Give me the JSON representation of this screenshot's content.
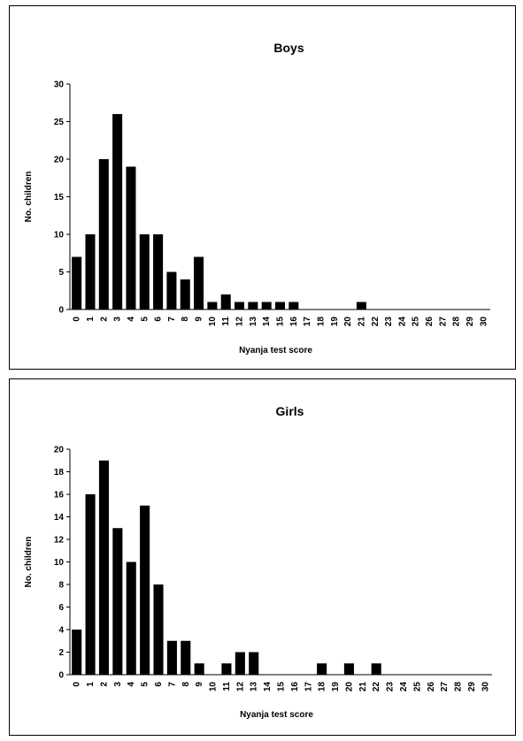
{
  "chart_data": [
    {
      "type": "bar",
      "title": "Boys",
      "xlabel": "Nyanja test score",
      "ylabel": "No. children",
      "ylim": [
        0,
        30
      ],
      "yticks": [
        0,
        5,
        10,
        15,
        20,
        25,
        30
      ],
      "categories": [
        "0",
        "1",
        "2",
        "3",
        "4",
        "5",
        "6",
        "7",
        "8",
        "9",
        "10",
        "11",
        "12",
        "13",
        "14",
        "15",
        "16",
        "17",
        "18",
        "19",
        "20",
        "21",
        "22",
        "23",
        "24",
        "25",
        "26",
        "27",
        "28",
        "29",
        "30"
      ],
      "values": [
        7,
        10,
        20,
        26,
        19,
        10,
        10,
        5,
        4,
        7,
        1,
        2,
        1,
        1,
        1,
        1,
        1,
        0,
        0,
        0,
        0,
        1,
        0,
        0,
        0,
        0,
        0,
        0,
        0,
        0,
        0
      ],
      "grid": false,
      "color": "#000000"
    },
    {
      "type": "bar",
      "title": "Girls",
      "xlabel": "Nyanja test score",
      "ylabel": "No. children",
      "ylim": [
        0,
        20
      ],
      "yticks": [
        0,
        2,
        4,
        6,
        8,
        10,
        12,
        14,
        16,
        18,
        20
      ],
      "categories": [
        "0",
        "1",
        "2",
        "3",
        "4",
        "5",
        "6",
        "7",
        "8",
        "9",
        "10",
        "11",
        "12",
        "13",
        "14",
        "15",
        "16",
        "17",
        "18",
        "19",
        "20",
        "21",
        "22",
        "23",
        "24",
        "25",
        "26",
        "27",
        "28",
        "29",
        "30"
      ],
      "values": [
        4,
        16,
        19,
        13,
        10,
        15,
        8,
        3,
        3,
        1,
        0,
        1,
        2,
        2,
        0,
        0,
        0,
        0,
        1,
        0,
        1,
        0,
        1,
        0,
        0,
        0,
        0,
        0,
        0,
        0,
        0
      ],
      "grid": false,
      "color": "#000000"
    }
  ]
}
